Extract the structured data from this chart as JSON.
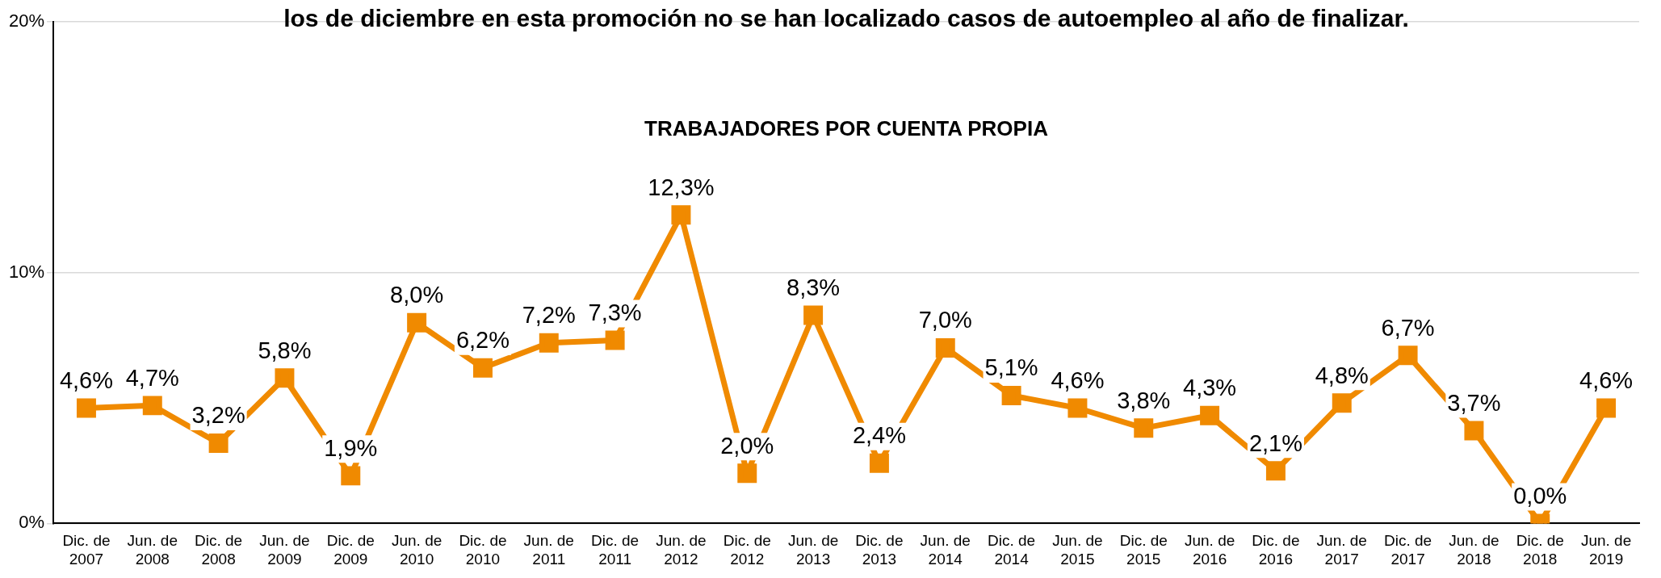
{
  "chart_data": {
    "type": "line",
    "title": "TRABAJADORES POR CUENTA PROPIA",
    "annotations": [
      "los de diciembre en esta promoción no se han localizado casos de autoempleo al año de finalizar."
    ],
    "categories": [
      "Dic. de 2007",
      "Jun. de 2008",
      "Dic. de 2008",
      "Jun. de 2009",
      "Dic. de 2009",
      "Jun. de 2010",
      "Dic. de 2010",
      "Jun. de 2011",
      "Dic. de 2011",
      "Jun. de 2012",
      "Dic. de 2012",
      "Jun. de 2013",
      "Dic. de 2013",
      "Jun. de 2014",
      "Dic. de 2014",
      "Jun. de 2015",
      "Dic. de 2015",
      "Jun. de 2016",
      "Dic. de 2016",
      "Jun. de 2017",
      "Dic. de 2017",
      "Jun. de 2018",
      "Dic. de 2018",
      "Jun. de 2019"
    ],
    "series": [
      {
        "color": "#f08a00",
        "values": [
          4.6,
          4.7,
          3.2,
          5.8,
          1.9,
          8.0,
          6.2,
          7.2,
          7.3,
          12.3,
          2.0,
          8.3,
          2.4,
          7.0,
          5.1,
          4.6,
          3.8,
          4.3,
          2.1,
          4.8,
          6.7,
          3.7,
          0.0,
          4.6
        ],
        "value_labels": [
          "4,6%",
          "4,7%",
          "3,2%",
          "5,8%",
          "1,9%",
          "8,0%",
          "6,2%",
          "7,2%",
          "7,3%",
          "12,3%",
          "2,0%",
          "8,3%",
          "2,4%",
          "7,0%",
          "5,1%",
          "4,6%",
          "3,8%",
          "4,3%",
          "2,1%",
          "4,8%",
          "6,7%",
          "3,7%",
          "0,0%",
          "4,6%"
        ]
      }
    ],
    "ylim": [
      0,
      20
    ],
    "yticks": [
      {
        "value": 0,
        "label": "0%"
      },
      {
        "value": 10,
        "label": "10%"
      },
      {
        "value": 20,
        "label": "20%"
      }
    ],
    "grid": "y",
    "marker": "square",
    "line_style": "solid",
    "legend": false
  }
}
